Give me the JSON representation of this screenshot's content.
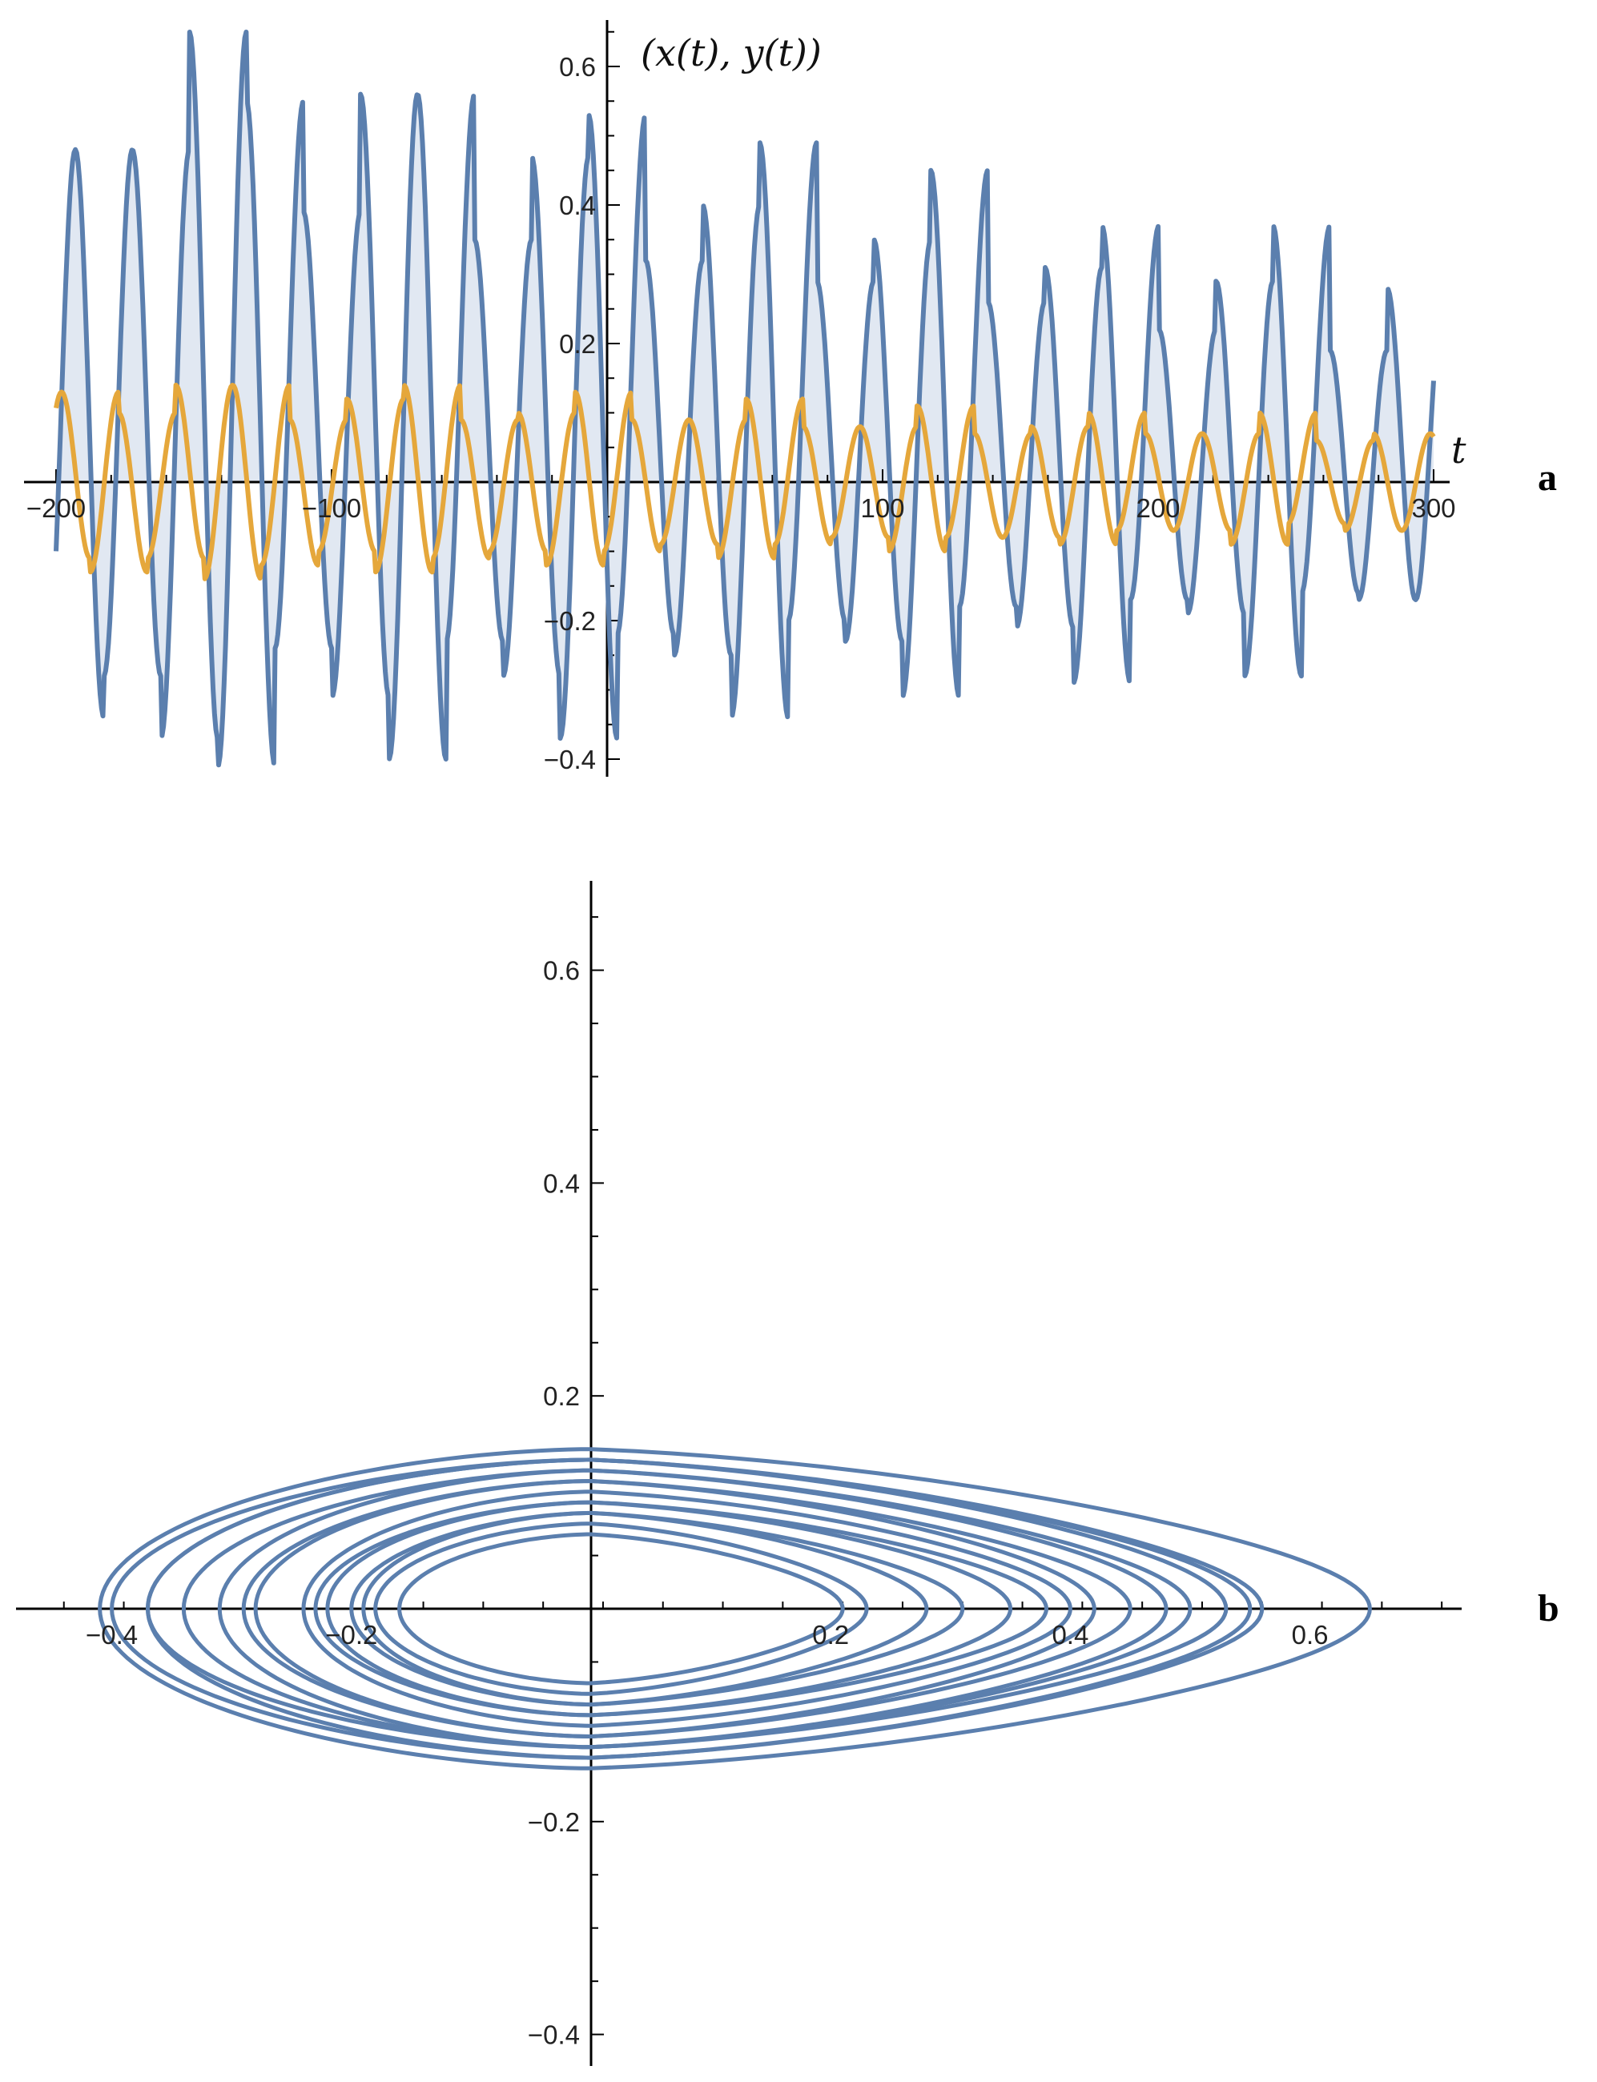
{
  "chart_data": [
    {
      "panel_label": "a",
      "type": "line",
      "title": "(x(t), y(t))",
      "xlabel": "t",
      "xlim": [
        -200,
        300
      ],
      "ylim": [
        -0.42,
        0.66
      ],
      "xticks": [
        -200,
        -100,
        100,
        200,
        300
      ],
      "yticks": [
        -0.4,
        -0.2,
        0.2,
        0.4,
        0.6
      ],
      "filled_to_axis": true,
      "series": [
        {
          "color": "#5b7fae",
          "period": 20.7,
          "phase_t": -193,
          "x": [
            -193,
            -172,
            -152,
            -131,
            -110,
            -90,
            -69,
            -48,
            -28,
            -7,
            14,
            34,
            55,
            76,
            96,
            117,
            138,
            158,
            179,
            200,
            220,
            241,
            262,
            282
          ],
          "peaks": [
            0.48,
            0.48,
            0.65,
            0.55,
            0.39,
            0.56,
            0.56,
            0.35,
            0.47,
            0.53,
            0.32,
            0.4,
            0.49,
            0.29,
            0.35,
            0.45,
            0.26,
            0.31,
            0.37,
            0.22,
            0.29,
            0.37,
            0.19,
            0.28
          ],
          "troughs": [
            -0.34,
            -0.28,
            -0.37,
            -0.41,
            -0.24,
            -0.31,
            -0.4,
            -0.23,
            -0.28,
            -0.37,
            -0.22,
            -0.25,
            -0.34,
            -0.2,
            -0.23,
            -0.31,
            -0.18,
            -0.21,
            -0.29,
            -0.17,
            -0.19,
            -0.28,
            -0.16,
            -0.17
          ]
        },
        {
          "color": "#e5a73b",
          "period": 20.7,
          "phase_t": -198,
          "x": [
            -198,
            -177,
            -156,
            -136,
            -115,
            -94,
            -74,
            -53,
            -32,
            -12,
            9,
            30,
            50,
            71,
            92,
            112,
            133,
            154,
            174,
            195,
            216,
            236,
            257,
            278
          ],
          "peaks": [
            0.13,
            0.1,
            0.14,
            0.14,
            0.09,
            0.12,
            0.14,
            0.09,
            0.1,
            0.13,
            0.09,
            0.09,
            0.12,
            0.08,
            0.08,
            0.11,
            0.07,
            0.08,
            0.1,
            0.07,
            0.07,
            0.1,
            0.06,
            0.07
          ],
          "troughs": [
            -0.11,
            -0.13,
            -0.11,
            -0.14,
            -0.12,
            -0.1,
            -0.13,
            -0.11,
            -0.1,
            -0.12,
            -0.1,
            -0.09,
            -0.11,
            -0.09,
            -0.08,
            -0.1,
            -0.08,
            -0.08,
            -0.09,
            -0.07,
            -0.07,
            -0.09,
            -0.06,
            -0.07
          ]
        }
      ]
    },
    {
      "panel_label": "b",
      "type": "line",
      "title": "",
      "xlim": [
        -0.45,
        0.72
      ],
      "ylim": [
        -0.42,
        0.68
      ],
      "xticks": [
        -0.4,
        -0.2,
        0.2,
        0.4,
        0.6
      ],
      "yticks": [
        -0.4,
        -0.2,
        0.2,
        0.4,
        0.6
      ],
      "series": [
        {
          "color": "#5b7fae",
          "orbit_max_x": [
            0.21,
            0.23,
            0.28,
            0.31,
            0.35,
            0.38,
            0.4,
            0.42,
            0.45,
            0.48,
            0.5,
            0.53,
            0.55,
            0.56,
            0.65
          ],
          "orbit_min_x": [
            -0.16,
            -0.18,
            -0.19,
            -0.2,
            -0.22,
            -0.23,
            -0.24,
            -0.28,
            -0.29,
            -0.31,
            -0.34,
            -0.37,
            -0.37,
            -0.4,
            -0.41
          ],
          "orbit_max_y": [
            0.07,
            0.08,
            0.09,
            0.09,
            0.1,
            0.1,
            0.11,
            0.12,
            0.12,
            0.13,
            0.13,
            0.14,
            0.14,
            0.14,
            0.15
          ],
          "orbit_min_y": [
            -0.07,
            -0.08,
            -0.09,
            -0.09,
            -0.1,
            -0.1,
            -0.11,
            -0.12,
            -0.12,
            -0.13,
            -0.13,
            -0.13,
            -0.14,
            -0.14,
            -0.15
          ]
        }
      ]
    }
  ]
}
